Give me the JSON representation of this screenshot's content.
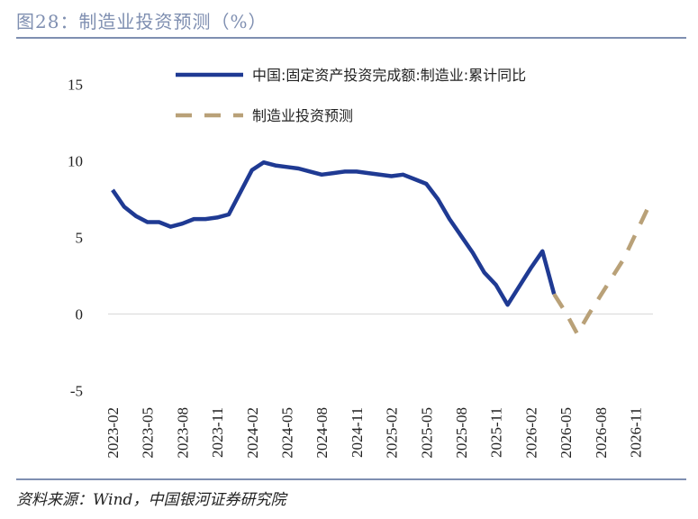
{
  "header": {
    "title": "图28：制造业投资预测（%）"
  },
  "footer": {
    "source": "资料来源：Wind，中国银河证券研究院"
  },
  "colors": {
    "accent": "#7f8fb1",
    "actual": "#1f3a93",
    "forecast": "#b9a178"
  },
  "chart_data": {
    "type": "line",
    "title": "",
    "xlabel": "",
    "ylabel": "",
    "ylim": [
      -5,
      15
    ],
    "yticks": [
      "15",
      "10",
      "5",
      "0",
      "-5"
    ],
    "xticks": [
      "2023-02",
      "2023-05",
      "2023-08",
      "2023-11",
      "2024-02",
      "2024-05",
      "2024-08",
      "2024-11",
      "2025-02",
      "2025-05",
      "2025-08",
      "2025-11",
      "2026-02",
      "2026-05",
      "2026-08",
      "2026-11"
    ],
    "legend_position": "top",
    "series": [
      {
        "name": "中国:固定资产投资完成额:制造业:累计同比",
        "style": "solid",
        "x": [
          "2023-02",
          "2023-03",
          "2023-04",
          "2023-05",
          "2023-06",
          "2023-07",
          "2023-08",
          "2023-09",
          "2023-10",
          "2023-11",
          "2023-12",
          "2024-02",
          "2024-03",
          "2024-04",
          "2024-05",
          "2024-06",
          "2024-07",
          "2024-08",
          "2024-09",
          "2024-10",
          "2024-11",
          "2024-12",
          "2025-02",
          "2025-03",
          "2025-04",
          "2025-05",
          "2025-06",
          "2025-07",
          "2025-08",
          "2025-09",
          "2025-10",
          "2025-11",
          "2025-12",
          "2026-02",
          "2026-03",
          "2026-04"
        ],
        "values": [
          8.1,
          7.0,
          6.4,
          6.0,
          6.0,
          5.7,
          5.9,
          6.2,
          6.2,
          6.3,
          6.5,
          9.4,
          9.9,
          9.7,
          9.6,
          9.5,
          9.3,
          9.1,
          9.2,
          9.3,
          9.3,
          9.2,
          9.0,
          9.1,
          8.8,
          8.5,
          7.5,
          6.2,
          5.1,
          4.0,
          2.7,
          1.9,
          0.6,
          3.0,
          4.1,
          1.3
        ]
      },
      {
        "name": "制造业投资预测",
        "style": "dashed",
        "x": [
          "2026-04",
          "2026-05",
          "2026-06",
          "2026-07",
          "2026-08",
          "2026-09",
          "2026-10",
          "2026-11",
          "2026-12"
        ],
        "values": [
          1.3,
          0.1,
          -1.3,
          0.0,
          1.2,
          2.4,
          3.6,
          5.2,
          6.8
        ]
      }
    ]
  }
}
